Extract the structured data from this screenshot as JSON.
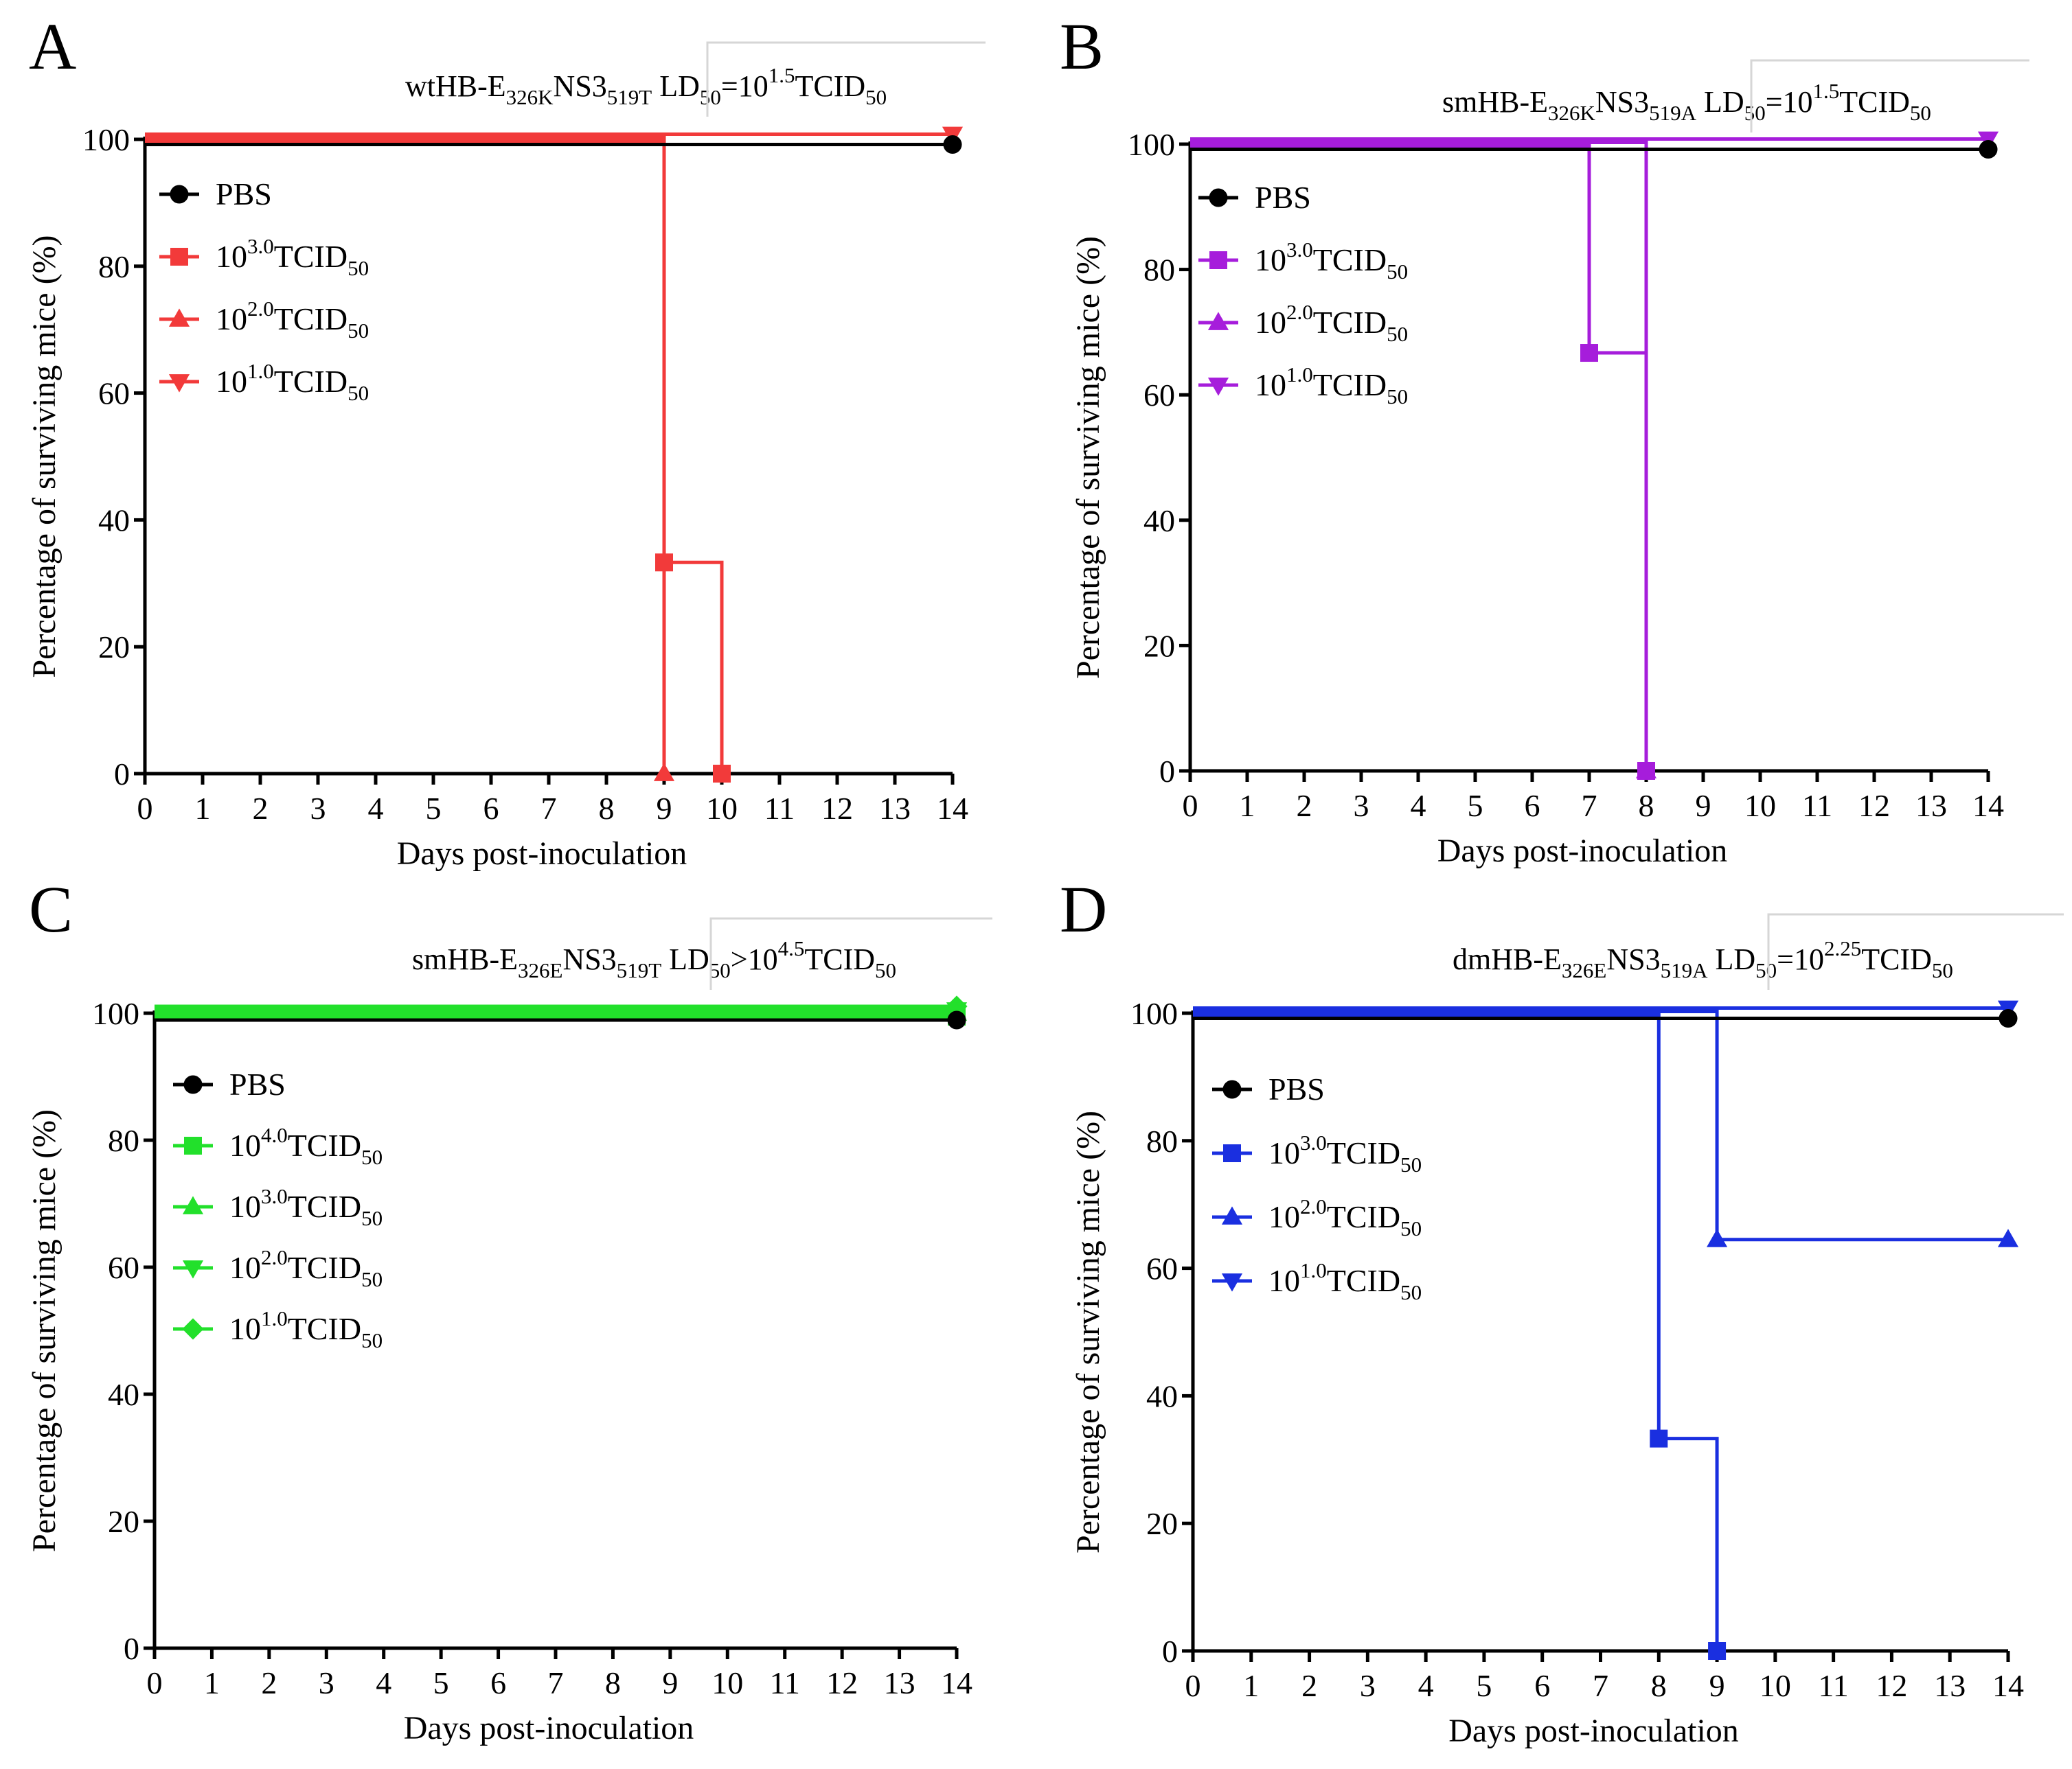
{
  "chart_data": [
    {
      "type": "line",
      "panel": "A",
      "title": {
        "strain": "wtHB-E",
        "strain_sub1": "326K",
        "strain_mid": "NS3",
        "strain_sub2": "519T",
        "ld_label": "LD",
        "ld_sub": "50",
        "ld_rel": "=10",
        "ld_exp": "1.5",
        "ld_unit": "TCID",
        "ld_unit_sub": "50"
      },
      "xlabel": "Days post-inoculation",
      "ylabel": "Percentage of surviving mice (%)",
      "xlim": [
        0,
        14
      ],
      "ylim": [
        0,
        100
      ],
      "xticks": [
        0,
        1,
        2,
        3,
        4,
        5,
        6,
        7,
        8,
        9,
        10,
        11,
        12,
        13,
        14
      ],
      "yticks": [
        0,
        20,
        40,
        60,
        80,
        100
      ],
      "series": [
        {
          "name": "PBS",
          "base": "PBS",
          "exp": "",
          "unit": "",
          "unit_sub": "",
          "color": "#000000",
          "marker": "circle",
          "steps": [
            [
              0,
              100
            ],
            [
              14,
              100
            ]
          ],
          "markers": [
            [
              14,
              100
            ]
          ]
        },
        {
          "name": "10^3.0 TCID50",
          "base": "10",
          "exp": "3.0",
          "unit": "TCID",
          "unit_sub": "50",
          "color": "#f23a3a",
          "marker": "square",
          "steps": [
            [
              0,
              100
            ],
            [
              9,
              100
            ],
            [
              9,
              33.3
            ],
            [
              10,
              33.3
            ],
            [
              10,
              0
            ]
          ],
          "markers": [
            [
              9,
              33.3
            ],
            [
              10,
              0
            ]
          ]
        },
        {
          "name": "10^2.0 TCID50",
          "base": "10",
          "exp": "2.0",
          "unit": "TCID",
          "unit_sub": "50",
          "color": "#f23a3a",
          "marker": "triangle",
          "steps": [
            [
              0,
              100
            ],
            [
              9,
              100
            ],
            [
              9,
              0
            ]
          ],
          "markers": [
            [
              9,
              0
            ]
          ]
        },
        {
          "name": "10^1.0 TCID50",
          "base": "10",
          "exp": "1.0",
          "unit": "TCID",
          "unit_sub": "50",
          "color": "#f23a3a",
          "marker": "triangle-down",
          "steps": [
            [
              0,
              100
            ],
            [
              14,
              100
            ]
          ],
          "markers": [
            [
              14,
              100
            ]
          ]
        }
      ]
    },
    {
      "type": "line",
      "panel": "B",
      "title": {
        "strain": "smHB-E",
        "strain_sub1": "326K",
        "strain_mid": "NS3",
        "strain_sub2": "519A",
        "ld_label": "LD",
        "ld_sub": "50",
        "ld_rel": "=10",
        "ld_exp": "1.5",
        "ld_unit": "TCID",
        "ld_unit_sub": "50"
      },
      "xlabel": "Days post-inoculation",
      "ylabel": "Percentage of surviving mice (%)",
      "xlim": [
        0,
        14
      ],
      "ylim": [
        0,
        100
      ],
      "xticks": [
        0,
        1,
        2,
        3,
        4,
        5,
        6,
        7,
        8,
        9,
        10,
        11,
        12,
        13,
        14
      ],
      "yticks": [
        0,
        20,
        40,
        60,
        80,
        100
      ],
      "series": [
        {
          "name": "PBS",
          "base": "PBS",
          "exp": "",
          "unit": "",
          "unit_sub": "",
          "color": "#000000",
          "marker": "circle",
          "steps": [
            [
              0,
              100
            ],
            [
              14,
              100
            ]
          ],
          "markers": [
            [
              14,
              100
            ]
          ]
        },
        {
          "name": "10^3.0 TCID50",
          "base": "10",
          "exp": "3.0",
          "unit": "TCID",
          "unit_sub": "50",
          "color": "#a61ddb",
          "marker": "square",
          "steps": [
            [
              0,
              100
            ],
            [
              7,
              100
            ],
            [
              7,
              66.7
            ],
            [
              8,
              66.7
            ],
            [
              8,
              0
            ]
          ],
          "markers": [
            [
              7,
              66.7
            ],
            [
              8,
              0
            ]
          ]
        },
        {
          "name": "10^2.0 TCID50",
          "base": "10",
          "exp": "2.0",
          "unit": "TCID",
          "unit_sub": "50",
          "color": "#a61ddb",
          "marker": "triangle",
          "steps": [
            [
              0,
              100
            ],
            [
              8,
              100
            ],
            [
              8,
              0
            ]
          ],
          "markers": [
            [
              8,
              0
            ]
          ]
        },
        {
          "name": "10^1.0 TCID50",
          "base": "10",
          "exp": "1.0",
          "unit": "TCID",
          "unit_sub": "50",
          "color": "#a61ddb",
          "marker": "triangle-down",
          "steps": [
            [
              0,
              100
            ],
            [
              14,
              100
            ]
          ],
          "markers": [
            [
              14,
              100
            ]
          ]
        }
      ]
    },
    {
      "type": "line",
      "panel": "C",
      "title": {
        "strain": "smHB-E",
        "strain_sub1": "326E",
        "strain_mid": "NS3",
        "strain_sub2": "519T",
        "ld_label": "LD",
        "ld_sub": "50",
        "ld_rel": ">10",
        "ld_exp": "4.5",
        "ld_unit": "TCID",
        "ld_unit_sub": "50"
      },
      "xlabel": "Days post-inoculation",
      "ylabel": "Percentage of surviving mice (%)",
      "xlim": [
        0,
        14
      ],
      "ylim": [
        0,
        100
      ],
      "xticks": [
        0,
        1,
        2,
        3,
        4,
        5,
        6,
        7,
        8,
        9,
        10,
        11,
        12,
        13,
        14
      ],
      "yticks": [
        0,
        20,
        40,
        60,
        80,
        100
      ],
      "series": [
        {
          "name": "PBS",
          "base": "PBS",
          "exp": "",
          "unit": "",
          "unit_sub": "",
          "color": "#000000",
          "marker": "circle",
          "steps": [
            [
              0,
              100
            ],
            [
              14,
              100
            ]
          ],
          "markers": [
            [
              14,
              100
            ]
          ]
        },
        {
          "name": "10^4.0 TCID50",
          "base": "10",
          "exp": "4.0",
          "unit": "TCID",
          "unit_sub": "50",
          "color": "#22e02b",
          "marker": "square",
          "steps": [
            [
              0,
              100
            ],
            [
              14,
              100
            ]
          ],
          "markers": [
            [
              14,
              100
            ]
          ]
        },
        {
          "name": "10^3.0 TCID50",
          "base": "10",
          "exp": "3.0",
          "unit": "TCID",
          "unit_sub": "50",
          "color": "#22e02b",
          "marker": "triangle",
          "steps": [
            [
              0,
              100
            ],
            [
              14,
              100
            ]
          ],
          "markers": [
            [
              14,
              100
            ]
          ]
        },
        {
          "name": "10^2.0 TCID50",
          "base": "10",
          "exp": "2.0",
          "unit": "TCID",
          "unit_sub": "50",
          "color": "#22e02b",
          "marker": "triangle-down",
          "steps": [
            [
              0,
              100
            ],
            [
              14,
              100
            ]
          ],
          "markers": [
            [
              14,
              100
            ]
          ]
        },
        {
          "name": "10^1.0 TCID50",
          "base": "10",
          "exp": "1.0",
          "unit": "TCID",
          "unit_sub": "50",
          "color": "#22e02b",
          "marker": "diamond",
          "steps": [
            [
              0,
              100
            ],
            [
              14,
              100
            ]
          ],
          "markers": [
            [
              14,
              100
            ]
          ]
        }
      ]
    },
    {
      "type": "line",
      "panel": "D",
      "title": {
        "strain": "dmHB-E",
        "strain_sub1": "326E",
        "strain_mid": "NS3",
        "strain_sub2": "519A",
        "ld_label": "LD",
        "ld_sub": "50",
        "ld_rel": "=10",
        "ld_exp": "2.25",
        "ld_unit": "TCID",
        "ld_unit_sub": "50"
      },
      "xlabel": "Days post-inoculation",
      "ylabel": "Percentage of surviving mice (%)",
      "xlim": [
        0,
        14
      ],
      "ylim": [
        0,
        100
      ],
      "xticks": [
        0,
        1,
        2,
        3,
        4,
        5,
        6,
        7,
        8,
        9,
        10,
        11,
        12,
        13,
        14
      ],
      "yticks": [
        0,
        20,
        40,
        60,
        80,
        100
      ],
      "series": [
        {
          "name": "PBS",
          "base": "PBS",
          "exp": "",
          "unit": "",
          "unit_sub": "",
          "color": "#000000",
          "marker": "circle",
          "steps": [
            [
              0,
              100
            ],
            [
              14,
              100
            ]
          ],
          "markers": [
            [
              14,
              100
            ]
          ]
        },
        {
          "name": "10^3.0 TCID50",
          "base": "10",
          "exp": "3.0",
          "unit": "TCID",
          "unit_sub": "50",
          "color": "#1a2fe0",
          "marker": "square",
          "steps": [
            [
              0,
              100
            ],
            [
              8,
              100
            ],
            [
              8,
              33.3
            ],
            [
              9,
              33.3
            ],
            [
              9,
              0
            ]
          ],
          "markers": [
            [
              8,
              33.3
            ],
            [
              9,
              0
            ]
          ]
        },
        {
          "name": "10^2.0 TCID50",
          "base": "10",
          "exp": "2.0",
          "unit": "TCID",
          "unit_sub": "50",
          "color": "#1a2fe0",
          "marker": "triangle",
          "steps": [
            [
              0,
              100
            ],
            [
              9,
              100
            ],
            [
              9,
              64.5
            ],
            [
              14,
              64.5
            ]
          ],
          "markers": [
            [
              9,
              64.5
            ],
            [
              14,
              64.5
            ]
          ]
        },
        {
          "name": "10^1.0 TCID50",
          "base": "10",
          "exp": "1.0",
          "unit": "TCID",
          "unit_sub": "50",
          "color": "#1a2fe0",
          "marker": "triangle-down",
          "steps": [
            [
              0,
              100
            ],
            [
              14,
              100
            ]
          ],
          "markers": [
            [
              14,
              100
            ]
          ]
        }
      ]
    }
  ]
}
